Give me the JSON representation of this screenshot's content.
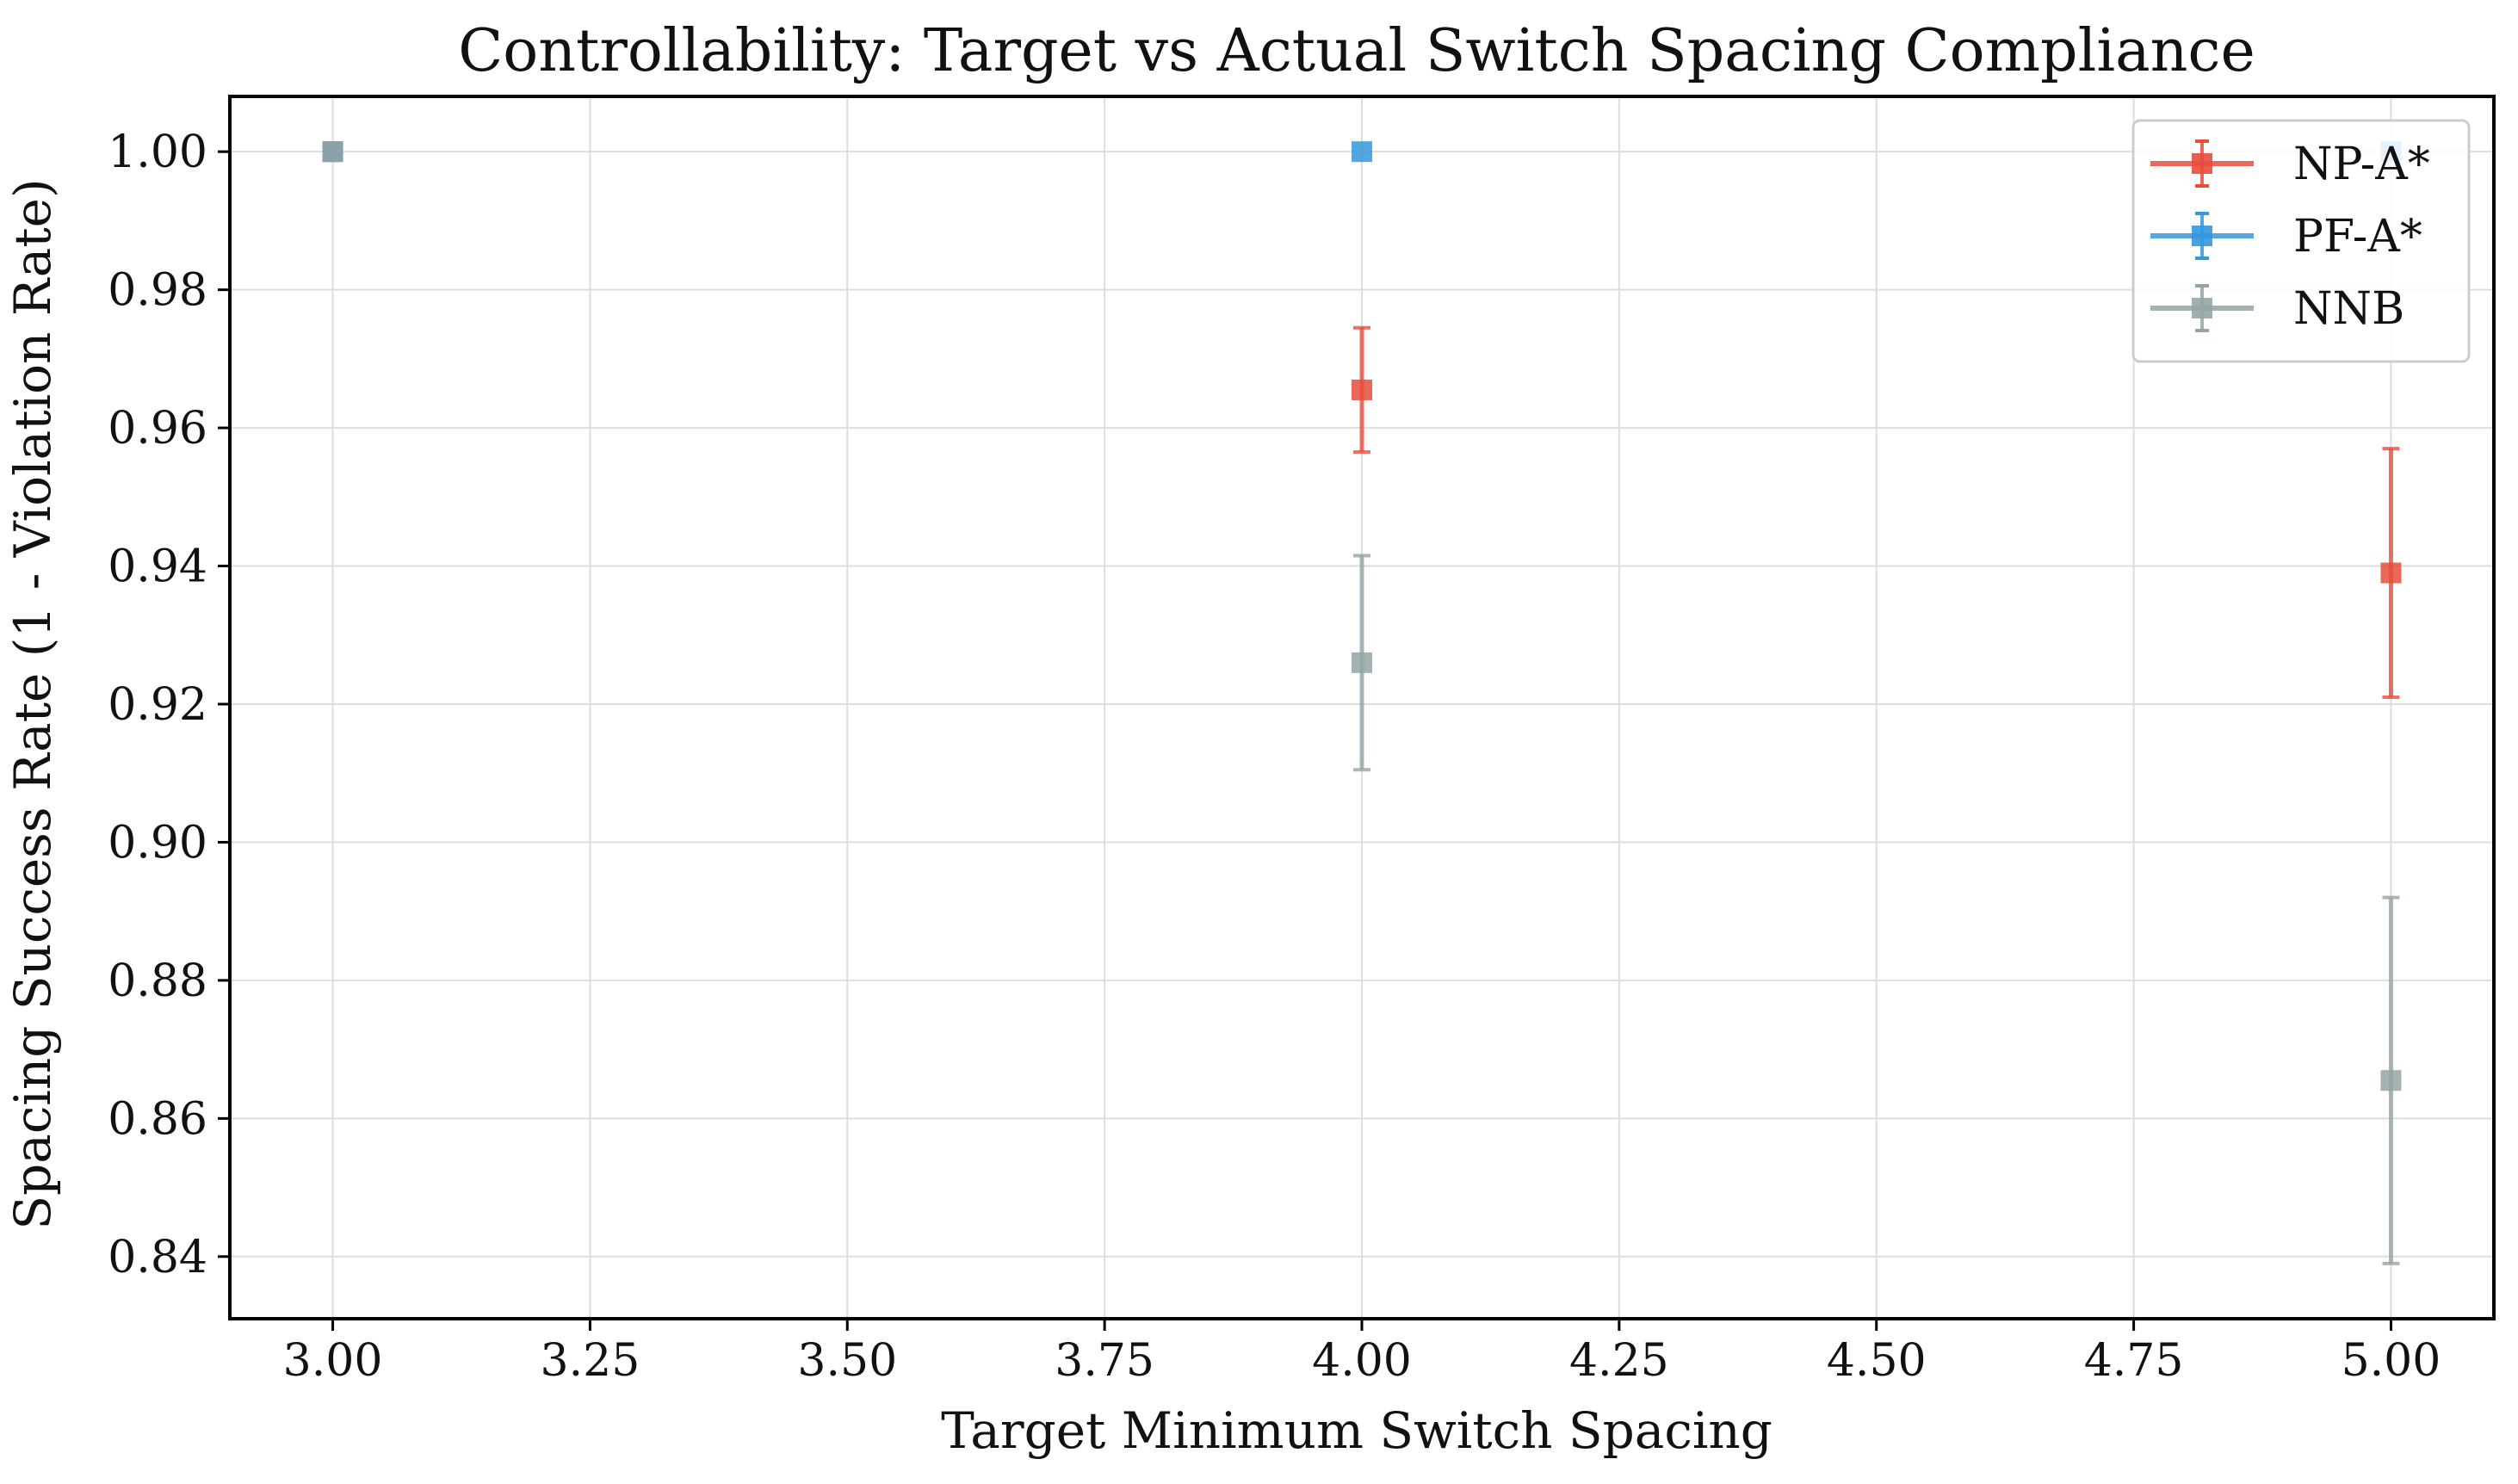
{
  "chart_data": {
    "type": "scatter",
    "title": "Controllability: Target vs Actual Switch Spacing Compliance",
    "xlabel": "Target Minimum Switch Spacing",
    "ylabel": "Spacing Success Rate (1 - Violation Rate)",
    "xlim": [
      2.9,
      5.1
    ],
    "ylim": [
      0.831,
      1.008
    ],
    "xticks": [
      3.0,
      3.25,
      3.5,
      3.75,
      4.0,
      4.25,
      4.5,
      4.75,
      5.0
    ],
    "xtick_labels": [
      "3.00",
      "3.25",
      "3.50",
      "3.75",
      "4.00",
      "4.25",
      "4.50",
      "4.75",
      "5.00"
    ],
    "yticks": [
      0.84,
      0.86,
      0.88,
      0.9,
      0.92,
      0.94,
      0.96,
      0.98,
      1.0
    ],
    "ytick_labels": [
      "0.84",
      "0.86",
      "0.88",
      "0.90",
      "0.92",
      "0.94",
      "0.96",
      "0.98",
      "1.00"
    ],
    "grid": true,
    "legend_position": "top-right",
    "series": [
      {
        "name": "NP-A*",
        "color": "#e74c3c",
        "points": [
          {
            "x": 3.0,
            "y": 1.0,
            "err": 0
          },
          {
            "x": 4.0,
            "y": 0.9655,
            "err": 0.009
          },
          {
            "x": 5.0,
            "y": 0.939,
            "err": 0.018
          }
        ]
      },
      {
        "name": "PF-A*",
        "color": "#3498db",
        "points": [
          {
            "x": 3.0,
            "y": 1.0,
            "err": 0
          },
          {
            "x": 4.0,
            "y": 1.0,
            "err": 0
          },
          {
            "x": 5.0,
            "y": 1.0,
            "err": 0
          }
        ]
      },
      {
        "name": "NNB",
        "color": "#95a5a6",
        "points": [
          {
            "x": 3.0,
            "y": 1.0,
            "err": 0
          },
          {
            "x": 4.0,
            "y": 0.926,
            "err": 0.0155
          },
          {
            "x": 5.0,
            "y": 0.8655,
            "err": 0.0265
          }
        ]
      }
    ]
  }
}
